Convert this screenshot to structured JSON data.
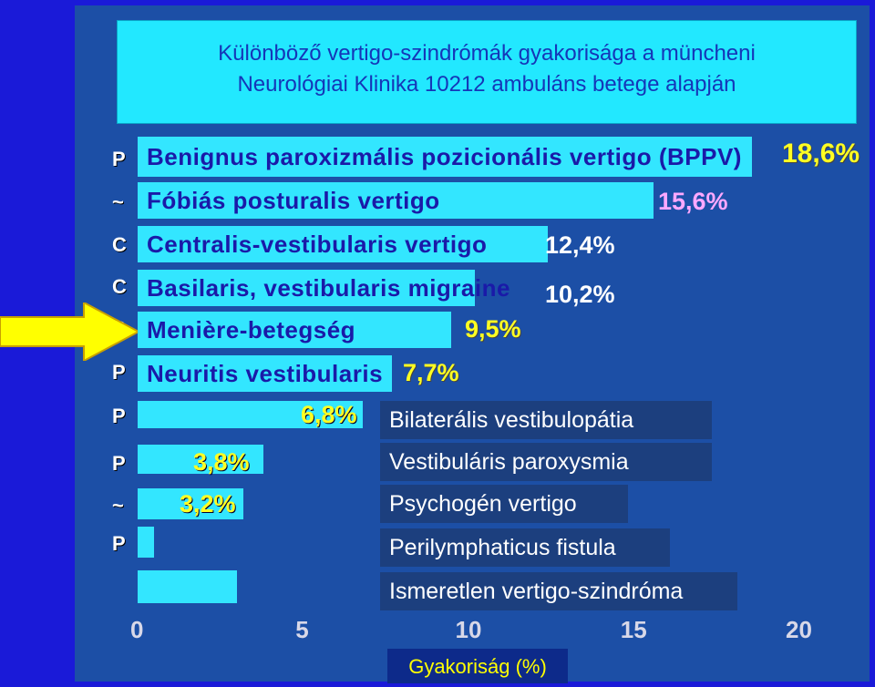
{
  "title_lines": [
    "Különböző vertigo-szindrómák gyakorisága a müncheni",
    "Neurológiai Klinika 10212 ambuláns betege alapján"
  ],
  "side_letters": [
    "P",
    "~",
    "C",
    "C",
    "P",
    "P",
    "P",
    "P",
    "~",
    "P"
  ],
  "chart_data": {
    "type": "bar",
    "orientation": "horizontal",
    "title": "Különböző vertigo-szindrómák gyakorisága a müncheni Neurológiai Klinika 10212 ambuláns betege alapján",
    "xlabel": "Gyakoriság (%)",
    "ylabel": "",
    "xlim": [
      0,
      20
    ],
    "xticks": [
      "0",
      "5",
      "10",
      "15",
      "20"
    ],
    "categories": [
      "Benignus paroxizmális pozicionális vertigo (BPPV)",
      "Fóbiás posturalis vertigo",
      "Centralis-vestibularis vertigo",
      "Basilaris, vestibularis migraine",
      "Menière-betegség",
      "Neuritis vestibularis",
      "Bilaterális vestibulopátia",
      "Vestibuláris paroxysmia",
      "Psychogén vertigo",
      "Perilymphaticus fistula",
      "Ismeretlen vertigo-szindróma"
    ],
    "values": [
      18.6,
      15.6,
      12.4,
      10.2,
      9.5,
      7.7,
      6.8,
      3.8,
      3.2,
      0.5,
      3.0
    ],
    "value_labels": [
      "18,6%",
      "15,6%",
      "12,4%",
      "10,2%",
      "9,5%",
      "7,7%",
      "6,8%",
      "3,8%",
      "3,2%",
      "",
      ""
    ],
    "grid": false,
    "legend": "none"
  },
  "colors": {
    "background": "#1a1ad8",
    "panel": "#1c4fa6",
    "bar": "#33e6ff",
    "title_box": "#22e8ff",
    "value_yellow": "#ffff22",
    "value_pink": "#ffa8ff",
    "arrow": "#ffff00"
  },
  "marker": "arrow-pointing-at-meniere-row"
}
